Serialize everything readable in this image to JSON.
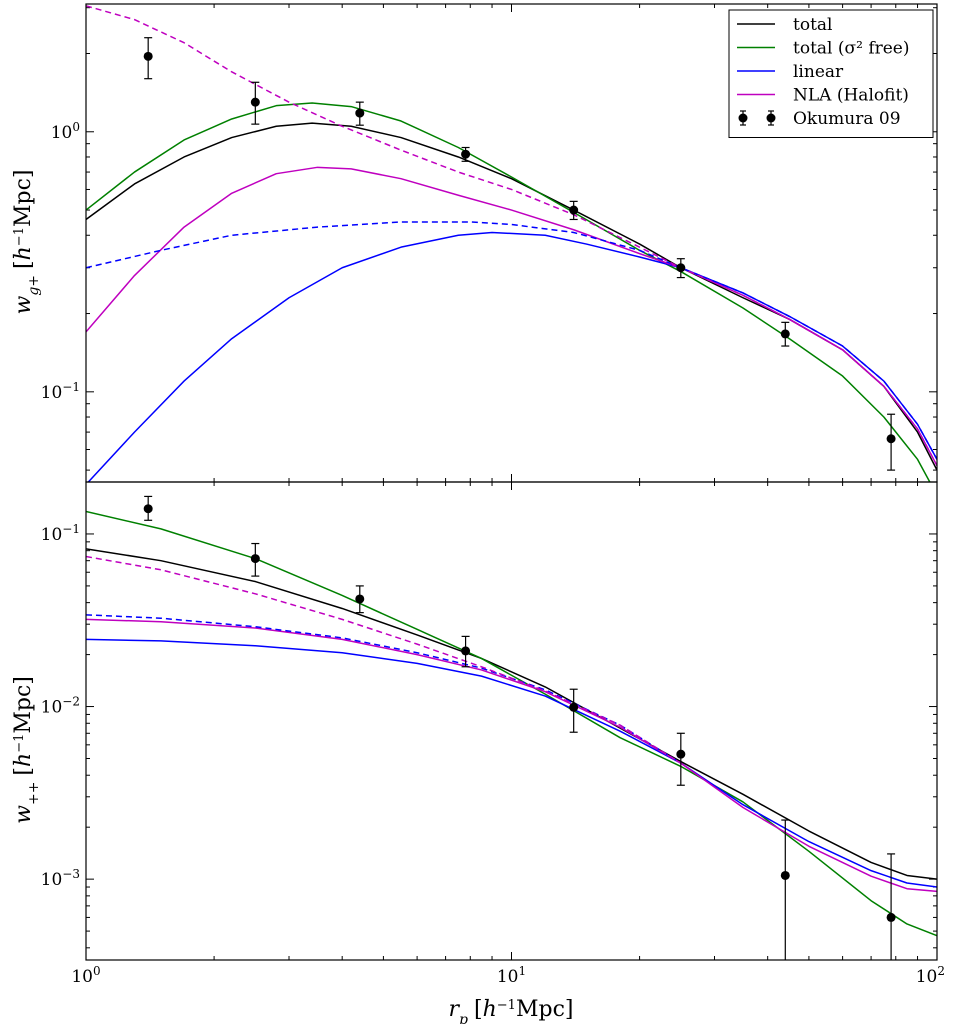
{
  "colors": {
    "total": "#000000",
    "sigma_free": "#008000",
    "linear": "#0000ff",
    "nla": "#bf00bf",
    "data": "#000000"
  },
  "chart_data": [
    {
      "type": "line",
      "panel": "top",
      "ylabel": "w_{g+} [h^{-1}Mpc]",
      "xscale": "log",
      "yscale": "log",
      "xlim": [
        1,
        100
      ],
      "ylim": [
        0.045,
        3.1
      ],
      "xticks": [
        {
          "value": 1,
          "label": "10",
          "exp": "0"
        },
        {
          "value": 10,
          "label": "10",
          "exp": "1"
        },
        {
          "value": 100,
          "label": "10",
          "exp": "2"
        }
      ],
      "yticks": [
        {
          "value": 0.1,
          "label": "10",
          "exp": "−1"
        },
        {
          "value": 1,
          "label": "10",
          "exp": "0"
        }
      ],
      "series": [
        {
          "name": "total",
          "color": "#000000",
          "style": "solid",
          "x": [
            1.0,
            1.3,
            1.7,
            2.2,
            2.8,
            3.4,
            4.2,
            5.5,
            7.5,
            10,
            14,
            20,
            25,
            35,
            45,
            60,
            75,
            90,
            100
          ],
          "y": [
            0.46,
            0.63,
            0.8,
            0.95,
            1.05,
            1.08,
            1.05,
            0.95,
            0.8,
            0.66,
            0.5,
            0.37,
            0.3,
            0.23,
            0.19,
            0.145,
            0.105,
            0.07,
            0.05
          ]
        },
        {
          "name": "total (σ² free)",
          "color": "#008000",
          "style": "solid",
          "x": [
            1.0,
            1.3,
            1.7,
            2.2,
            2.8,
            3.4,
            4.2,
            5.5,
            7.5,
            10,
            14,
            20,
            25,
            35,
            45,
            60,
            75,
            90,
            100
          ],
          "y": [
            0.5,
            0.7,
            0.93,
            1.12,
            1.26,
            1.29,
            1.25,
            1.1,
            0.87,
            0.67,
            0.49,
            0.35,
            0.29,
            0.21,
            0.16,
            0.115,
            0.08,
            0.055,
            0.04
          ]
        },
        {
          "name": "linear",
          "color": "#0000ff",
          "style": "solid",
          "x": [
            1.0,
            1.3,
            1.7,
            2.2,
            3.0,
            4.0,
            5.5,
            7.5,
            9,
            12,
            15,
            20,
            25,
            35,
            45,
            60,
            75,
            90,
            100
          ],
          "y": [
            0.044,
            0.07,
            0.11,
            0.16,
            0.23,
            0.3,
            0.36,
            0.4,
            0.41,
            0.4,
            0.37,
            0.33,
            0.3,
            0.24,
            0.195,
            0.15,
            0.11,
            0.075,
            0.055
          ]
        },
        {
          "name": "NLA (Halofit)",
          "color": "#bf00bf",
          "style": "solid",
          "x": [
            1.0,
            1.3,
            1.7,
            2.2,
            2.8,
            3.5,
            4.2,
            5.5,
            7.5,
            10,
            14,
            20,
            25,
            35,
            45,
            60,
            75,
            90,
            100
          ],
          "y": [
            0.17,
            0.28,
            0.43,
            0.58,
            0.69,
            0.73,
            0.72,
            0.66,
            0.57,
            0.5,
            0.42,
            0.34,
            0.3,
            0.235,
            0.19,
            0.145,
            0.105,
            0.072,
            0.052
          ]
        },
        {
          "name": "linear (dashed)",
          "color": "#0000ff",
          "style": "dashed",
          "x": [
            1.0,
            1.5,
            2.2,
            3.5,
            5.5,
            8,
            10,
            14,
            20,
            25,
            35,
            45,
            60,
            75,
            90,
            100
          ],
          "y": [
            0.3,
            0.35,
            0.4,
            0.43,
            0.45,
            0.45,
            0.44,
            0.41,
            0.35,
            0.3,
            0.24,
            0.195,
            0.15,
            0.11,
            0.075,
            0.055
          ]
        },
        {
          "name": "NLA (Halofit, dashed)",
          "color": "#bf00bf",
          "style": "dashed",
          "x": [
            1.0,
            1.3,
            1.7,
            2.2,
            3.0,
            4.0,
            5.5,
            7.5,
            10,
            14,
            20,
            25,
            35,
            45,
            60,
            75,
            90,
            100
          ],
          "y": [
            3.05,
            2.7,
            2.2,
            1.7,
            1.3,
            1.05,
            0.85,
            0.7,
            0.6,
            0.48,
            0.36,
            0.3,
            0.235,
            0.19,
            0.145,
            0.105,
            0.072,
            0.052
          ]
        }
      ],
      "points": {
        "name": "Okumura 09",
        "x": [
          1.4,
          2.5,
          4.4,
          7.8,
          14,
          25,
          44,
          78
        ],
        "y": [
          1.95,
          1.3,
          1.18,
          0.82,
          0.5,
          0.3,
          0.167,
          0.066
        ],
        "yerr_low": [
          1.6,
          1.07,
          1.06,
          0.77,
          0.46,
          0.275,
          0.15,
          0.05
        ],
        "yerr_high": [
          2.3,
          1.55,
          1.3,
          0.87,
          0.54,
          0.325,
          0.185,
          0.082
        ]
      },
      "legend": [
        {
          "label": "total",
          "color": "#000000",
          "kind": "line"
        },
        {
          "label": "total (σ² free)",
          "color": "#008000",
          "kind": "line"
        },
        {
          "label": "linear",
          "color": "#0000ff",
          "kind": "line"
        },
        {
          "label": "NLA (Halofit)",
          "color": "#bf00bf",
          "kind": "line"
        },
        {
          "label": "Okumura 09",
          "color": "#000000",
          "kind": "points"
        }
      ]
    },
    {
      "type": "line",
      "panel": "bottom",
      "xlabel": "r_p [h^{-1}Mpc]",
      "ylabel": "w_{++} [h^{-1}Mpc]",
      "xscale": "log",
      "yscale": "log",
      "xlim": [
        1,
        100
      ],
      "ylim": [
        0.00034,
        0.2
      ],
      "xticks": [
        {
          "value": 1,
          "label": "10",
          "exp": "0"
        },
        {
          "value": 10,
          "label": "10",
          "exp": "1"
        },
        {
          "value": 100,
          "label": "10",
          "exp": "2"
        }
      ],
      "yticks": [
        {
          "value": 0.001,
          "label": "10",
          "exp": "−3"
        },
        {
          "value": 0.01,
          "label": "10",
          "exp": "−2"
        },
        {
          "value": 0.1,
          "label": "10",
          "exp": "−1"
        }
      ],
      "series": [
        {
          "name": "total",
          "color": "#000000",
          "style": "solid",
          "x": [
            1.0,
            1.5,
            2.5,
            4.0,
            6.0,
            8.5,
            12,
            18,
            25,
            35,
            50,
            70,
            85,
            100
          ],
          "y": [
            0.082,
            0.07,
            0.053,
            0.037,
            0.026,
            0.019,
            0.013,
            0.0075,
            0.0048,
            0.0031,
            0.0019,
            0.00125,
            0.00105,
            0.001
          ]
        },
        {
          "name": "total (σ² free)",
          "color": "#008000",
          "style": "solid",
          "x": [
            1.0,
            1.5,
            2.5,
            4.0,
            6.0,
            8.5,
            12,
            18,
            25,
            35,
            50,
            70,
            85,
            100
          ],
          "y": [
            0.135,
            0.107,
            0.072,
            0.044,
            0.028,
            0.019,
            0.0118,
            0.0066,
            0.0045,
            0.0028,
            0.00145,
            0.00075,
            0.00055,
            0.00047
          ]
        },
        {
          "name": "linear",
          "color": "#0000ff",
          "style": "solid",
          "x": [
            1.0,
            1.5,
            2.5,
            4.0,
            6.0,
            8.5,
            12,
            18,
            25,
            35,
            50,
            70,
            85,
            100
          ],
          "y": [
            0.0245,
            0.024,
            0.0225,
            0.0205,
            0.0178,
            0.015,
            0.0115,
            0.0072,
            0.0047,
            0.0027,
            0.00165,
            0.00112,
            0.00095,
            0.0009
          ]
        },
        {
          "name": "NLA (Halofit)",
          "color": "#bf00bf",
          "style": "solid",
          "x": [
            1.0,
            1.5,
            2.5,
            4.0,
            6.0,
            8.5,
            12,
            18,
            25,
            35,
            50,
            70,
            85,
            100
          ],
          "y": [
            0.032,
            0.031,
            0.0285,
            0.0245,
            0.02,
            0.0163,
            0.0122,
            0.0076,
            0.0047,
            0.0026,
            0.00155,
            0.00104,
            0.00088,
            0.00085
          ]
        },
        {
          "name": "linear (dashed)",
          "color": "#0000ff",
          "style": "dashed",
          "x": [
            1.0,
            1.5,
            2.5,
            4.0,
            6.0,
            8.5,
            12,
            18,
            25
          ],
          "y": [
            0.034,
            0.0325,
            0.029,
            0.025,
            0.0205,
            0.0167,
            0.0125,
            0.0078,
            0.0047
          ]
        },
        {
          "name": "NLA (Halofit, dashed)",
          "color": "#bf00bf",
          "style": "dashed",
          "x": [
            1.0,
            1.5,
            2.5,
            4.0,
            6.0,
            8.5,
            12,
            18,
            25
          ],
          "y": [
            0.074,
            0.062,
            0.045,
            0.032,
            0.023,
            0.017,
            0.0123,
            0.0078,
            0.0047
          ]
        }
      ],
      "points": {
        "name": "Okumura 09",
        "x": [
          1.4,
          2.5,
          4.4,
          7.8,
          14,
          25,
          44,
          78
        ],
        "y": [
          0.14,
          0.072,
          0.042,
          0.021,
          0.0099,
          0.0053,
          0.00105,
          0.0006
        ],
        "yerr_low": [
          0.12,
          0.057,
          0.035,
          0.017,
          0.0071,
          0.0035,
          0.0003,
          0.0003
        ],
        "yerr_high": [
          0.165,
          0.088,
          0.05,
          0.0255,
          0.0126,
          0.007,
          0.0022,
          0.0014
        ]
      }
    }
  ]
}
